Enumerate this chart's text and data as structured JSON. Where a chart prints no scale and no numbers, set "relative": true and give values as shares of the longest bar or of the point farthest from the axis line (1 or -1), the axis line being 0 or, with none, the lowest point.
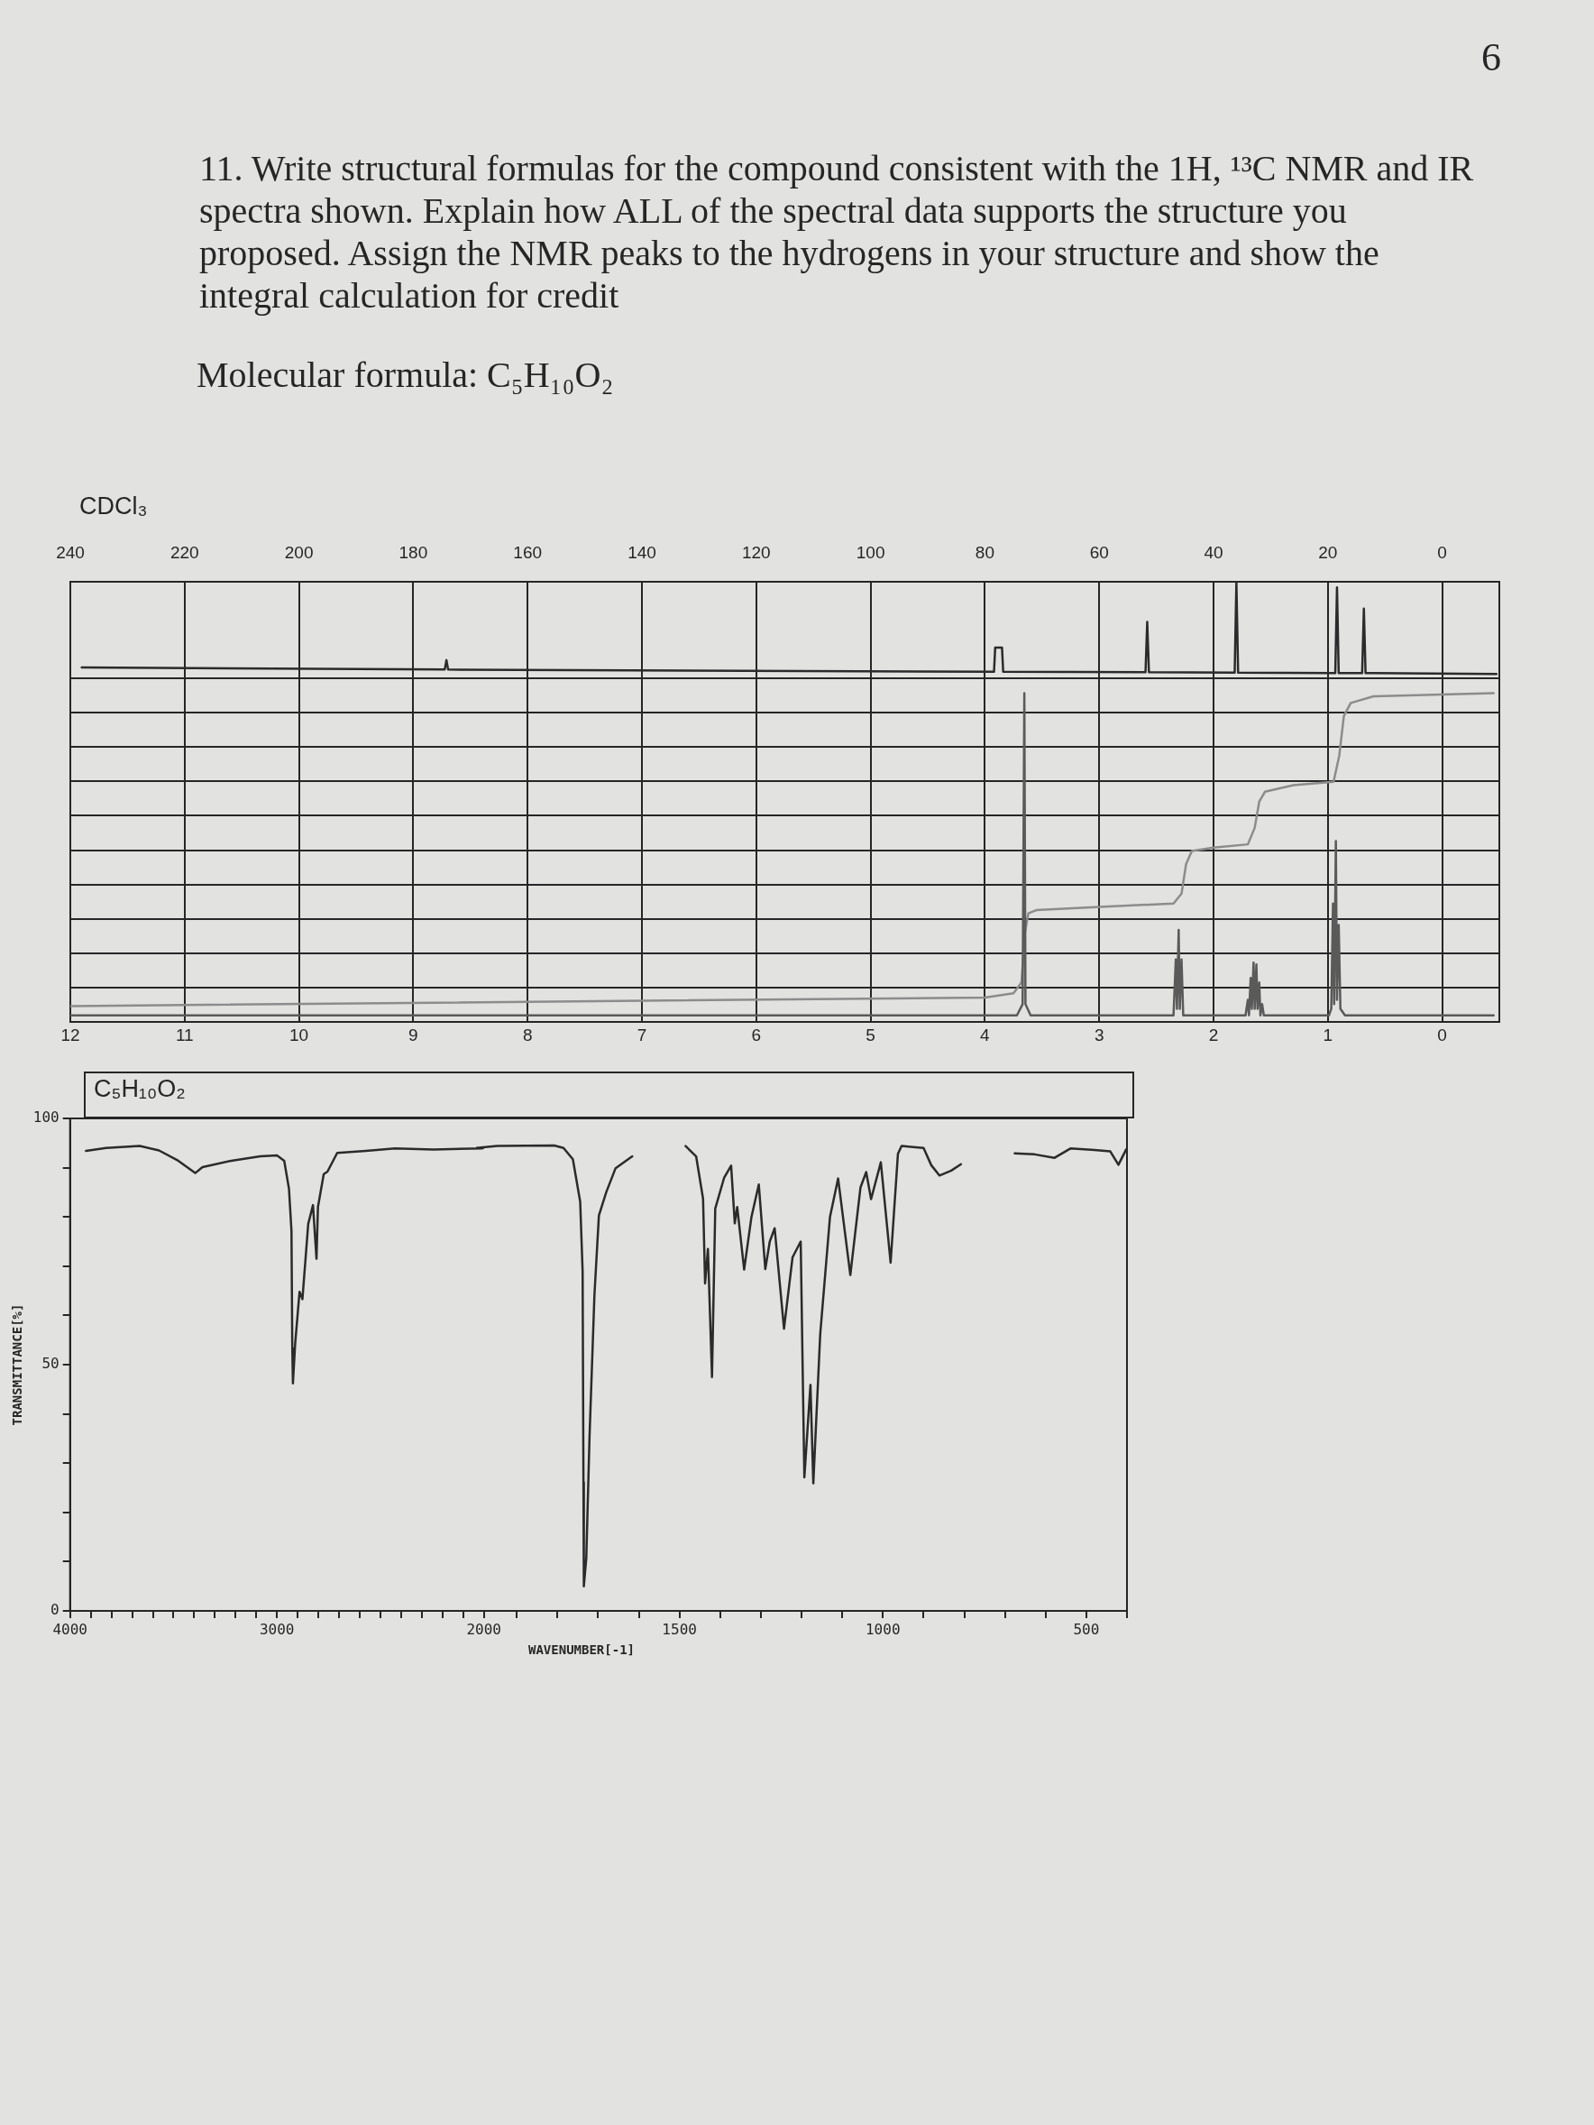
{
  "chart_data": [
    {
      "type": "line",
      "title": "11. Write structural formulas for the compound consistent with the 1H, ¹³C NMR and IR spectra shown. Explain how ALL of the spectral data supports the structure you proposed. Assign the NMR peaks to the hydrogens in your structure and show the integral calculation for credit",
      "subtitle": "Molecular formula: C₅H₁₀O₂",
      "annotations": [
        "6",
        "CDCl₃"
      ],
      "relative": true,
      "grid": "x",
      "xlim": [
        240,
        -10
      ],
      "xticks": [
        240,
        220,
        200,
        180,
        160,
        140,
        120,
        100,
        80,
        60,
        40,
        20,
        0
      ],
      "series": [
        {
          "color": "#2b2b2b",
          "x": [
            238,
            174.5,
            174.2,
            173.9,
            78.4,
            78.2,
            77.0,
            76.8,
            51.9,
            51.6,
            51.3,
            36.3,
            36.0,
            35.7,
            18.7,
            18.4,
            18.1,
            14.0,
            13.7,
            13.4,
            -9.5
          ],
          "values": [
            0.114,
            0.091,
            0.19,
            0.091,
            0.068,
            0.32,
            0.32,
            0.068,
            0.064,
            0.59,
            0.064,
            0.059,
            1,
            0.059,
            0.055,
            0.95,
            0.055,
            0.055,
            0.73,
            0.055,
            0.045
          ]
        }
      ]
    },
    {
      "type": "line",
      "relative": true,
      "grid": true,
      "xlim": [
        12,
        -0.5
      ],
      "xticks": [
        12,
        11,
        10,
        9,
        8,
        7,
        6,
        5,
        4,
        3,
        2,
        1,
        0
      ],
      "series": [
        {
          "color": "#5a5a5a",
          "x": [
            12,
            3.72,
            3.67,
            3.655,
            3.645,
            3.6,
            2.35,
            2.33,
            2.32,
            2.305,
            2.295,
            2.28,
            2.265,
            1.72,
            1.7,
            1.69,
            1.675,
            1.665,
            1.65,
            1.64,
            1.625,
            1.615,
            1.6,
            1.59,
            1.575,
            1.56,
            0.99,
            0.97,
            0.955,
            0.945,
            0.93,
            0.92,
            0.905,
            0.89,
            0.85,
            -0.45
          ],
          "values": [
            0.02,
            0.02,
            0.054,
            1,
            0.054,
            0.02,
            0.02,
            0.19,
            0.04,
            0.28,
            0.04,
            0.19,
            0.02,
            0.02,
            0.067,
            0.02,
            0.134,
            0.04,
            0.18,
            0.04,
            0.175,
            0.04,
            0.12,
            0.02,
            0.054,
            0.02,
            0.02,
            0.04,
            0.36,
            0.054,
            0.55,
            0.067,
            0.295,
            0.04,
            0.02,
            0.02
          ]
        },
        {
          "color": "#8c8c8c",
          "x": [
            12,
            4.0,
            3.75,
            3.68,
            3.65,
            3.62,
            3.55,
            3.0,
            2.35,
            2.28,
            2.24,
            2.19,
            2.0,
            1.7,
            1.64,
            1.6,
            1.55,
            1.3,
            0.95,
            0.9,
            0.86,
            0.8,
            0.6,
            -0.45
          ],
          "values": [
            0.048,
            0.074,
            0.087,
            0.12,
            0.27,
            0.33,
            0.34,
            0.35,
            0.36,
            0.39,
            0.48,
            0.52,
            0.53,
            0.54,
            0.59,
            0.67,
            0.7,
            0.72,
            0.73,
            0.81,
            0.93,
            0.97,
            0.99,
            1
          ]
        }
      ]
    },
    {
      "type": "line",
      "title": "C₅H₁₀O₂",
      "ylabel": "TRANSMITTANCE[%]",
      "xlim": [
        4000,
        2000
      ],
      "xticks": [
        4000,
        {
          "value": 3900,
          "label": null
        },
        {
          "value": 3800,
          "label": null
        },
        {
          "value": 3700,
          "label": null
        },
        {
          "value": 3600,
          "label": null
        },
        {
          "value": 3500,
          "label": null
        },
        {
          "value": 3400,
          "label": null
        },
        {
          "value": 3300,
          "label": null
        },
        {
          "value": 3200,
          "label": null
        },
        {
          "value": 3100,
          "label": null
        },
        3000,
        {
          "value": 2900,
          "label": null
        },
        {
          "value": 2800,
          "label": null
        },
        {
          "value": 2700,
          "label": null
        },
        {
          "value": 2600,
          "label": null
        },
        {
          "value": 2500,
          "label": null
        },
        {
          "value": 2400,
          "label": null
        },
        {
          "value": 2300,
          "label": null
        },
        {
          "value": 2200,
          "label": null
        },
        {
          "value": 2100,
          "label": null
        },
        2000
      ],
      "ylim": [
        0,
        100
      ],
      "yticks": [
        0,
        {
          "value": 10,
          "label": null
        },
        {
          "value": 20,
          "label": null
        },
        {
          "value": 30,
          "label": null
        },
        {
          "value": 40,
          "label": null
        },
        50,
        {
          "value": 60,
          "label": null
        },
        {
          "value": 70,
          "label": null
        },
        {
          "value": 80,
          "label": null
        },
        {
          "value": 90,
          "label": null
        },
        100
      ],
      "series": [
        {
          "color": "#2b2b2b",
          "x": [
            3923,
            3826,
            3663,
            3570,
            3477,
            3395,
            3360,
            3221,
            3081,
            3000,
            2965,
            2942,
            2930,
            2926,
            2923,
            2912,
            2891,
            2877,
            2849,
            2826,
            2809,
            2802,
            2774,
            2756,
            2709,
            2570,
            2430,
            2244,
            2012,
            2000
          ],
          "values": [
            93.4,
            94.0,
            94.4,
            93.5,
            91.4,
            88.9,
            90.1,
            91.4,
            92.3,
            92.5,
            91.4,
            85.7,
            77.2,
            53.3,
            46.2,
            54.3,
            64.8,
            63.3,
            78.6,
            82.4,
            71.5,
            82.0,
            88.7,
            89.2,
            93.0,
            93.4,
            93.9,
            93.7,
            93.9,
            94.0
          ]
        }
      ]
    },
    {
      "type": "line",
      "xlabel": "WAVENUMBER[-1]",
      "tick_labels": "x",
      "xlim": [
        2000,
        400
      ],
      "xticks": [
        {
          "value": 1900,
          "label": null
        },
        {
          "value": 1800,
          "label": null
        },
        {
          "value": 1700,
          "label": null
        },
        {
          "value": 1600,
          "label": null
        },
        1500,
        {
          "value": 1400,
          "label": null
        },
        {
          "value": 1300,
          "label": null
        },
        {
          "value": 1200,
          "label": null
        },
        {
          "value": 1100,
          "label": null
        },
        1000,
        {
          "value": 900,
          "label": null
        },
        {
          "value": 800,
          "label": null
        },
        {
          "value": 700,
          "label": null
        },
        {
          "value": 600,
          "label": null
        },
        500,
        {
          "value": 400,
          "label": null
        }
      ],
      "ylim": [
        0,
        100
      ],
      "series": [
        {
          "color": "#2b2b2b",
          "x": [
            2000,
            1948,
            1808,
            1785,
            1762,
            1744,
            1738,
            1736,
            1735,
            1729,
            1721,
            1709,
            1698,
            1680,
            1657,
            1616,
            1550,
            1485,
            1459,
            1442,
            1437,
            1430,
            1420,
            1412,
            1390,
            1373,
            1364,
            1358,
            1341,
            1323,
            1305,
            1289,
            1278,
            1266,
            1243,
            1222,
            1202,
            1193,
            1178,
            1171,
            1154,
            1130,
            1110,
            1080,
            1055,
            1041,
            1029,
            1005,
            981,
            963,
            954,
            900,
            881,
            861,
            832,
            808,
            740,
            676,
            627,
            578,
            539,
            480,
            441,
            421,
            402
          ],
          "values": [
            94.0,
            94.4,
            94.5,
            94.0,
            91.7,
            83.1,
            68.9,
            26.1,
            5.0,
            10.7,
            35.5,
            64.1,
            80.3,
            85.0,
            89.9,
            92.3,
            null,
            94.4,
            92.3,
            83.7,
            66.5,
            73.5,
            47.5,
            81.7,
            88.0,
            90.4,
            78.7,
            82.0,
            69.3,
            80.0,
            86.6,
            69.4,
            75.0,
            77.7,
            57.3,
            71.8,
            75.0,
            27.1,
            45.9,
            25.9,
            56.2,
            80.0,
            87.8,
            68.2,
            86.0,
            89.1,
            83.6,
            91.1,
            70.7,
            92.8,
            94.4,
            94.0,
            90.5,
            88.4,
            89.4,
            90.7,
            null,
            92.9,
            92.7,
            92.0,
            93.9,
            93.6,
            93.3,
            90.6,
            93.7
          ]
        }
      ]
    }
  ]
}
